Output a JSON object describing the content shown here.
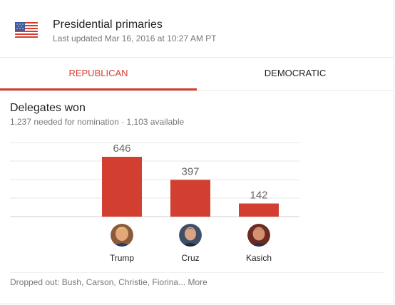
{
  "header": {
    "title": "Presidential primaries",
    "updated": "Last updated Mar 16, 2016 at 10:27 AM PT",
    "flag_icon": "us-flag-icon"
  },
  "tabs": [
    {
      "label": "REPUBLICAN",
      "active": true
    },
    {
      "label": "DEMOCRATIC",
      "active": false
    }
  ],
  "delegates": {
    "title": "Delegates won",
    "subtitle": "1,237 needed for nomination · 1,103 available"
  },
  "colors": {
    "accent": "#d23f31",
    "bar": "#d23f31",
    "grid": "#e6e6e6",
    "value_label": "#666666"
  },
  "chart_data": {
    "type": "bar",
    "categories": [
      "Trump",
      "Cruz",
      "Kasich"
    ],
    "values": [
      646,
      397,
      142
    ],
    "title": "Delegates won",
    "xlabel": "",
    "ylabel": "",
    "ylim": [
      0,
      800
    ],
    "grid": true
  },
  "candidates": [
    {
      "name": "Trump",
      "avatar_icon": "trump-avatar"
    },
    {
      "name": "Cruz",
      "avatar_icon": "cruz-avatar"
    },
    {
      "name": "Kasich",
      "avatar_icon": "kasich-avatar"
    }
  ],
  "dropped": {
    "text": "Dropped out: Bush, Carson, Christie, Fiorina...",
    "more_label": "More"
  }
}
